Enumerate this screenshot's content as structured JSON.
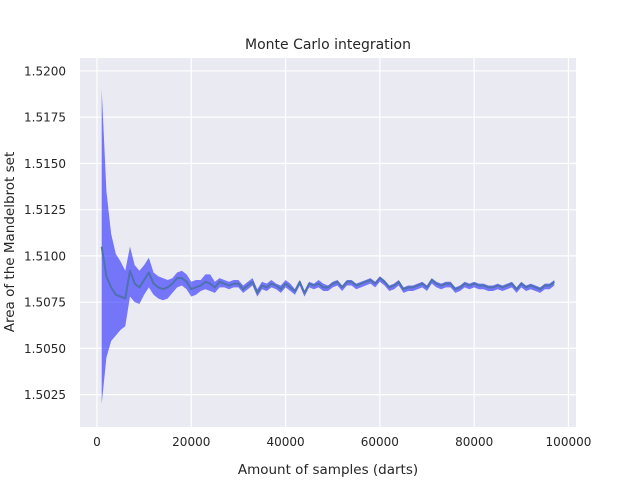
{
  "chart_data": {
    "type": "line",
    "title": "Monte Carlo integration",
    "xlabel": "Amount of samples (darts)",
    "ylabel": "Area of the Mandelbrot set",
    "xlim": [
      -3600,
      101600
    ],
    "ylim": [
      1.50075,
      1.5207
    ],
    "xticks": [
      0,
      20000,
      40000,
      60000,
      80000,
      100000
    ],
    "xtick_labels": [
      "0",
      "20000",
      "40000",
      "60000",
      "80000",
      "100000"
    ],
    "yticks": [
      1.5025,
      1.505,
      1.5075,
      1.51,
      1.5125,
      1.515,
      1.5175,
      1.52
    ],
    "ytick_labels": [
      "1.5025",
      "1.5050",
      "1.5075",
      "1.5100",
      "1.5125",
      "1.5150",
      "1.5175",
      "1.5200"
    ],
    "grid": true,
    "legend": "none",
    "colors": {
      "background": "#eaeaf2",
      "grid": "#ffffff",
      "band": "#0000ff",
      "band_opacity": 0.5,
      "line": "#4c72b0"
    },
    "series": [
      {
        "x": [
          1000,
          2000,
          3000,
          4000,
          5000,
          6000,
          7000,
          8000,
          9000,
          10000,
          11000,
          12000,
          13000,
          14000,
          15000,
          16000,
          17000,
          18000,
          19000,
          20000,
          21000,
          22000,
          23000,
          24000,
          25000,
          26000,
          27000,
          28000,
          29000,
          30000,
          31000,
          32000,
          33000,
          34000,
          35000,
          36000,
          37000,
          38000,
          39000,
          40000,
          41000,
          42000,
          43000,
          44000,
          45000,
          46000,
          47000,
          48000,
          49000,
          50000,
          51000,
          52000,
          53000,
          54000,
          55000,
          56000,
          57000,
          58000,
          59000,
          60000,
          61000,
          62000,
          63000,
          64000,
          65000,
          66000,
          67000,
          68000,
          69000,
          70000,
          71000,
          72000,
          73000,
          74000,
          75000,
          76000,
          77000,
          78000,
          79000,
          80000,
          81000,
          82000,
          83000,
          84000,
          85000,
          86000,
          87000,
          88000,
          89000,
          90000,
          91000,
          92000,
          93000,
          94000,
          95000,
          96000,
          97000
        ],
        "y": [
          1.5105,
          1.5089,
          1.5083,
          1.5079,
          1.5078,
          1.5077,
          1.5092,
          1.5085,
          1.5083,
          1.5087,
          1.5091,
          1.5085,
          1.5083,
          1.5082,
          1.5083,
          1.5085,
          1.5088,
          1.5088,
          1.5086,
          1.5082,
          1.5083,
          1.5084,
          1.5086,
          1.5085,
          1.5083,
          1.5086,
          1.5085,
          1.5084,
          1.5085,
          1.5085,
          1.5082,
          1.5084,
          1.5086,
          1.508,
          1.5084,
          1.5083,
          1.5085,
          1.5084,
          1.5082,
          1.5085,
          1.5083,
          1.5081,
          1.5086,
          1.508,
          1.5085,
          1.5084,
          1.5085,
          1.5083,
          1.5083,
          1.5085,
          1.5086,
          1.5083,
          1.5086,
          1.5086,
          1.5084,
          1.5085,
          1.5086,
          1.5087,
          1.5085,
          1.5088,
          1.5086,
          1.5083,
          1.5084,
          1.5086,
          1.5082,
          1.5083,
          1.5083,
          1.5084,
          1.5085,
          1.5083,
          1.5087,
          1.5085,
          1.5084,
          1.5085,
          1.5085,
          1.5082,
          1.5083,
          1.5085,
          1.5084,
          1.5085,
          1.5084,
          1.5084,
          1.5083,
          1.5083,
          1.5084,
          1.5083,
          1.5084,
          1.5085,
          1.5082,
          1.5085,
          1.5083,
          1.5084,
          1.5083,
          1.5082,
          1.5084,
          1.5084,
          1.5086
        ],
        "upper": [
          1.519,
          1.5135,
          1.5112,
          1.5101,
          1.5097,
          1.5092,
          1.5105,
          1.5095,
          1.5092,
          1.5095,
          1.5099,
          1.5091,
          1.5089,
          1.5088,
          1.5087,
          1.5088,
          1.5091,
          1.5092,
          1.509,
          1.5086,
          1.5087,
          1.5087,
          1.509,
          1.509,
          1.5086,
          1.5088,
          1.5087,
          1.5086,
          1.5087,
          1.5087,
          1.5084,
          1.5086,
          1.5088,
          1.5082,
          1.5086,
          1.5085,
          1.5087,
          1.5085,
          1.5084,
          1.5087,
          1.5085,
          1.5082,
          1.5087,
          1.5081,
          1.5086,
          1.5085,
          1.5087,
          1.5085,
          1.5084,
          1.5086,
          1.5087,
          1.5084,
          1.5087,
          1.5087,
          1.5085,
          1.5086,
          1.5087,
          1.5088,
          1.5086,
          1.5089,
          1.5087,
          1.5084,
          1.5085,
          1.5087,
          1.5083,
          1.5084,
          1.5084,
          1.5085,
          1.5086,
          1.5084,
          1.5088,
          1.5086,
          1.5085,
          1.5086,
          1.5086,
          1.5083,
          1.5084,
          1.5086,
          1.5085,
          1.5086,
          1.5085,
          1.5085,
          1.5084,
          1.5084,
          1.5085,
          1.5084,
          1.5085,
          1.5086,
          1.5083,
          1.5086,
          1.5084,
          1.5085,
          1.5084,
          1.5083,
          1.5085,
          1.5085,
          1.5087
        ],
        "lower": [
          1.502,
          1.5045,
          1.5054,
          1.5057,
          1.506,
          1.5062,
          1.5078,
          1.5075,
          1.5074,
          1.5079,
          1.5083,
          1.5079,
          1.5077,
          1.5076,
          1.5077,
          1.508,
          1.5083,
          1.5084,
          1.5082,
          1.5078,
          1.5079,
          1.5081,
          1.5082,
          1.5081,
          1.508,
          1.5083,
          1.5083,
          1.5082,
          1.5083,
          1.5083,
          1.508,
          1.5082,
          1.5084,
          1.5078,
          1.5082,
          1.5081,
          1.5083,
          1.5082,
          1.508,
          1.5083,
          1.5081,
          1.5079,
          1.5084,
          1.5078,
          1.5083,
          1.5082,
          1.5083,
          1.5081,
          1.5081,
          1.5083,
          1.5084,
          1.5081,
          1.5084,
          1.5084,
          1.5082,
          1.5083,
          1.5084,
          1.5085,
          1.5083,
          1.5086,
          1.5084,
          1.5081,
          1.5082,
          1.5084,
          1.508,
          1.5081,
          1.5081,
          1.5082,
          1.5083,
          1.5081,
          1.5085,
          1.5083,
          1.5082,
          1.5083,
          1.5083,
          1.508,
          1.5081,
          1.5083,
          1.5082,
          1.5083,
          1.5082,
          1.5082,
          1.5081,
          1.5081,
          1.5082,
          1.5081,
          1.5082,
          1.5083,
          1.508,
          1.5083,
          1.5081,
          1.5082,
          1.5081,
          1.508,
          1.5082,
          1.5082,
          1.5084
        ]
      }
    ]
  }
}
